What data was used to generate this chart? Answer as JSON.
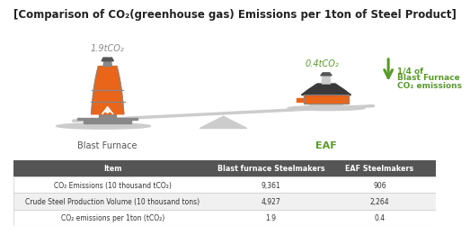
{
  "title": "[Comparison of CO₂(greenhouse gas) Emissions per 1ton of Steel Product]",
  "title_fontsize": 8.5,
  "bg_color": "#ffffff",
  "table_header_bg": "#555555",
  "table_header_color": "#ffffff",
  "table_border_color": "#cccccc",
  "bf_label": "Blast Furnace",
  "eaf_label": "EAF",
  "eaf_label_color": "#5a9a2a",
  "bf_value_label": "1.9tCO₂",
  "eaf_value_label": "0.4tCO₂",
  "value_label_color_bf": "#888888",
  "value_label_color_eaf": "#5a9a2a",
  "arrow_text_line1": "1/4 of",
  "arrow_text_line2": "Blast Furnace",
  "arrow_text_line3": "CO₂ emissions",
  "arrow_color": "#5a9a2a",
  "col_headers": [
    "Item",
    "Blast furnace Steelmakers",
    "EAF Steelmakers"
  ],
  "rows": [
    [
      "CO₂ Emissions (10 thousand tCO₂)",
      "9,361",
      "906"
    ],
    [
      "Crude Steel Production Volume (10 thousand tons)",
      "4,927",
      "2,264"
    ],
    [
      "CO₂ emissions per 1ton (tCO₂)",
      "1.9",
      "0.4"
    ]
  ],
  "orange_color": "#e8651a",
  "light_gray": "#cccccc",
  "mid_gray": "#888888",
  "dark_gray": "#555555",
  "scale_color": "#cccccc"
}
